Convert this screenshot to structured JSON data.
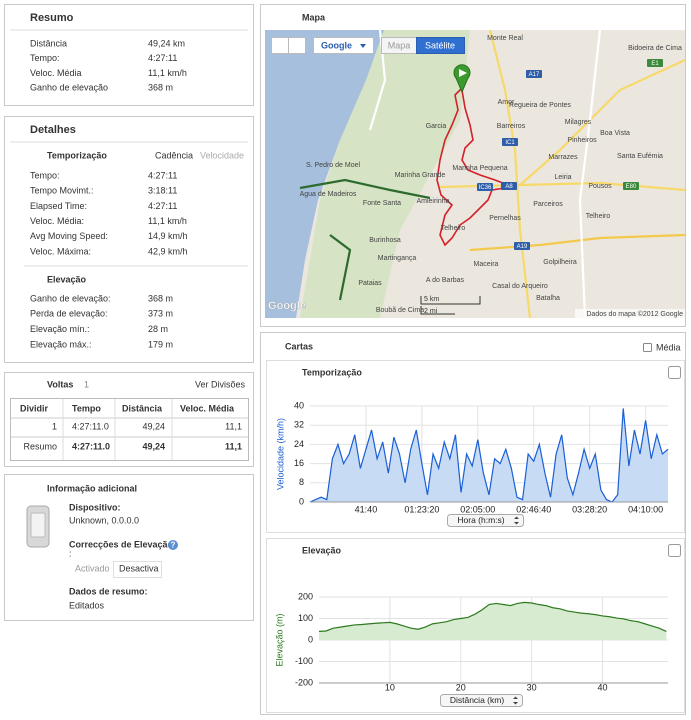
{
  "summary": {
    "title": "Resumo",
    "rows": [
      [
        "Distância",
        "49,24 km"
      ],
      [
        "Tempo:",
        "4:27:11"
      ],
      [
        "Veloc. Média",
        "11,1 km/h"
      ],
      [
        "Ganho de elevação",
        "368 m"
      ]
    ]
  },
  "details": {
    "title": "Detalhes",
    "tabs": [
      "Temporização",
      "Cadência",
      "Velocidade"
    ],
    "timing_rows": [
      [
        "Tempo:",
        "4:27:11"
      ],
      [
        "Tempo Movimt.:",
        "3:18:11"
      ],
      [
        "Elapsed Time:",
        "4:27:11"
      ],
      [
        "Veloc. Média:",
        "11,1 km/h"
      ],
      [
        "Avg Moving Speed:",
        "14,9 km/h"
      ],
      [
        "Veloc. Máxima:",
        "42,9 km/h"
      ]
    ],
    "elevation_title": "Elevação",
    "elevation_rows": [
      [
        "Ganho de elevação:",
        "368 m"
      ],
      [
        "Perda de elevação:",
        "373 m"
      ],
      [
        "Elevação mín.:",
        "28 m"
      ],
      [
        "Elevação máx.:",
        "179 m"
      ]
    ]
  },
  "laps": {
    "title": "Voltas",
    "count": "1",
    "link": "Ver Divisões",
    "columns": [
      "Dividir",
      "Tempo",
      "Distância",
      "Veloc. Média"
    ],
    "rows": [
      [
        "1",
        "4:27:11.0",
        "49,24",
        "11,1"
      ],
      [
        "Resumo",
        "4:27:11.0",
        "49,24",
        "11,1"
      ]
    ]
  },
  "info": {
    "title": "Informação adicional",
    "device_label": "Dispositivo:",
    "device": "Unknown, 0.0.0.0",
    "elevation_label": "Correcções de Elevação",
    "help": "?",
    "elevation_colon": ":",
    "buttons": [
      "Activado",
      "Desactiva"
    ],
    "summary_label": "Dados de resumo:",
    "summary_value": "Editados"
  },
  "map": {
    "title": "Mapa",
    "buttons": [
      "Google",
      "Mapa",
      "Satélite"
    ],
    "places": [
      "Monte Real",
      "Bidoeira de Cima",
      "Amor",
      "Regueira de Pontes",
      "Barreiros",
      "Pinheiros",
      "Boa Vista",
      "Milagres",
      "Garcia",
      "Marinha Pequena",
      "Marinha Grande",
      "Marrazes",
      "Santa Eufémia",
      "Leiria",
      "Pousos",
      "S. Pedro de Moel",
      "Agua de Madeiros",
      "Fonte Santa",
      "Amieirinha",
      "Parceiros",
      "Telheiro",
      "Telheiro",
      "Pernelhas",
      "Burinhosa",
      "Martingança",
      "Maceira",
      "Golpilheira",
      "Pataias",
      "A do Barbas",
      "Casal do Arqueiro",
      "Batalha",
      "Boubã de Cima"
    ],
    "roads": [
      "A17",
      "IC1",
      "IC36",
      "A8",
      "A19",
      "E1",
      "E80"
    ],
    "scale": [
      "5 km",
      "2 mi"
    ],
    "logo": "Google",
    "attribution": "Dados do mapa ©2012 Google"
  },
  "charts_panel": {
    "title": "Cartas",
    "average": "Média"
  },
  "chart_data": [
    {
      "type": "area",
      "title": "Temporização",
      "ylabel": "Velocidade (km/h)",
      "xlabel": "Hora (h:m:s)",
      "color": "#1a5fd6",
      "fill": "#c7dcf4",
      "grid": true,
      "xlim": [
        0,
        16000
      ],
      "ylim": [
        0,
        40
      ],
      "yticks": [
        0,
        8,
        16,
        24,
        32,
        40
      ],
      "xticks": [
        {
          "value": 2500,
          "label": "41:40"
        },
        {
          "value": 5000,
          "label": "01:23:20"
        },
        {
          "value": 7500,
          "label": "02:05:00"
        },
        {
          "value": 10000,
          "label": "02:46:40"
        },
        {
          "value": 12500,
          "label": "03:28:20"
        },
        {
          "value": 15000,
          "label": "04:10:00"
        }
      ],
      "x": [
        0,
        250,
        500,
        750,
        1000,
        1250,
        1500,
        1750,
        2000,
        2250,
        2500,
        2750,
        3000,
        3250,
        3500,
        3750,
        4000,
        4250,
        4500,
        4750,
        5000,
        5250,
        5500,
        5750,
        6000,
        6250,
        6500,
        6750,
        7000,
        7250,
        7500,
        7750,
        8000,
        8250,
        8500,
        8750,
        9000,
        9250,
        9500,
        9750,
        10000,
        10250,
        10500,
        10750,
        11000,
        11250,
        11500,
        11750,
        12000,
        12250,
        12500,
        12750,
        13000,
        13250,
        13500,
        13750,
        14000,
        14250,
        14500,
        14750,
        15000,
        15250,
        15500,
        15750,
        16000
      ],
      "values": [
        0,
        1,
        2,
        1,
        18,
        24,
        16,
        20,
        28,
        14,
        22,
        30,
        18,
        25,
        12,
        27,
        20,
        8,
        22,
        30,
        16,
        3,
        20,
        14,
        25,
        18,
        28,
        4,
        20,
        15,
        26,
        12,
        3,
        18,
        16,
        22,
        14,
        2,
        1,
        20,
        17,
        24,
        12,
        2,
        20,
        28,
        10,
        3,
        12,
        22,
        14,
        20,
        5,
        1,
        0,
        3,
        39,
        15,
        30,
        20,
        34,
        18,
        28,
        20,
        22
      ]
    },
    {
      "type": "area",
      "title": "Elevação",
      "ylabel": "Elevação (m)",
      "xlabel": "Distância (km)",
      "color": "#2d7a1f",
      "fill": "#d6ebcf",
      "grid": true,
      "xlim": [
        0,
        49.24
      ],
      "ylim": [
        -200,
        200
      ],
      "yticks": [
        -200,
        -100,
        0,
        100,
        200
      ],
      "xticks": [
        10,
        20,
        30,
        40
      ],
      "x": [
        0,
        1,
        2,
        3,
        4,
        5,
        6,
        7,
        8,
        9,
        10,
        11,
        12,
        13,
        14,
        15,
        16,
        17,
        18,
        19,
        20,
        21,
        22,
        23,
        24,
        25,
        26,
        27,
        28,
        29,
        30,
        31,
        32,
        33,
        34,
        35,
        36,
        37,
        38,
        39,
        40,
        41,
        42,
        43,
        44,
        45,
        46,
        47,
        48,
        49
      ],
      "values": [
        40,
        42,
        55,
        60,
        65,
        70,
        72,
        75,
        78,
        80,
        82,
        75,
        65,
        55,
        50,
        60,
        75,
        80,
        85,
        95,
        100,
        105,
        120,
        140,
        165,
        170,
        165,
        160,
        170,
        175,
        172,
        165,
        160,
        150,
        145,
        135,
        130,
        125,
        122,
        118,
        112,
        108,
        102,
        98,
        90,
        85,
        75,
        65,
        55,
        40
      ]
    }
  ]
}
